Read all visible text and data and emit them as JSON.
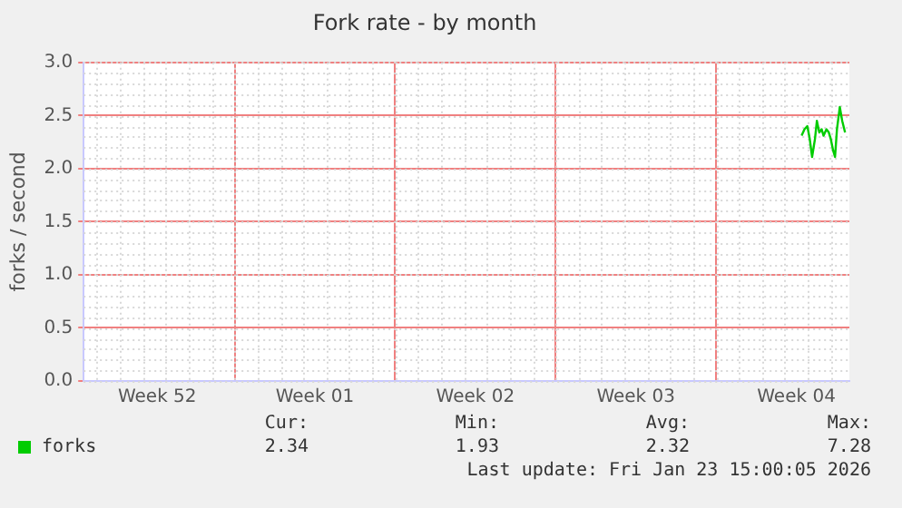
{
  "chart_data": {
    "type": "line",
    "title": "Fork rate - by month",
    "ylabel": "forks / second",
    "xlim": [
      "2025-12-21T10:00",
      "2026-01-23T19:30"
    ],
    "xticks": [
      {
        "value": "2025-12-24T15:00",
        "label": "Week 52"
      },
      {
        "value": "2025-12-28",
        "label": null
      },
      {
        "value": "2025-12-31T12:00",
        "label": "Week 01"
      },
      {
        "value": "2026-01-04",
        "label": null
      },
      {
        "value": "2026-01-07T12:00",
        "label": "Week 02"
      },
      {
        "value": "2026-01-11",
        "label": null
      },
      {
        "value": "2026-01-14T12:00",
        "label": "Week 03"
      },
      {
        "value": "2026-01-18",
        "label": null
      },
      {
        "value": "2026-01-21T12:00",
        "label": "Week 04"
      }
    ],
    "ylim": [
      0,
      3
    ],
    "yticks": [
      {
        "value": 0,
        "label": "0.0"
      },
      {
        "value": 0.5,
        "label": "0.5"
      },
      {
        "value": 1,
        "label": "1.0"
      },
      {
        "value": 1.5,
        "label": "1.5"
      },
      {
        "value": 2,
        "label": "2.0"
      },
      {
        "value": 2.5,
        "label": "2.5"
      },
      {
        "value": 3,
        "label": "3.0"
      }
    ],
    "grid": true,
    "legend": "bottom left",
    "marker": "none",
    "line_style": "solid",
    "series": [
      {
        "name": "forks",
        "color": "#00cc00",
        "x": [
          "2026-01-21T17:30",
          "2026-01-21T20:30",
          "2026-01-21T23:30",
          "2026-01-22T02:00",
          "2026-01-22T04:30",
          "2026-01-22T07:30",
          "2026-01-22T09:30",
          "2026-01-22T12:00",
          "2026-01-22T14:30",
          "2026-01-22T16:30",
          "2026-01-22T19:30",
          "2026-01-22T22:00",
          "2026-01-23T00:00",
          "2026-01-23T02:30",
          "2026-01-23T04:30",
          "2026-01-23T06:30",
          "2026-01-23T09:30",
          "2026-01-23T12:00",
          "2026-01-23T15:00"
        ],
        "values": [
          2.31,
          2.37,
          2.4,
          2.28,
          2.11,
          2.28,
          2.45,
          2.34,
          2.37,
          2.31,
          2.37,
          2.34,
          2.28,
          2.17,
          2.11,
          2.37,
          2.58,
          2.45,
          2.34
        ]
      }
    ],
    "annotations": [
      "Cur:",
      "Min:",
      "Avg:",
      "Max:",
      "2.34",
      "1.93",
      "2.32",
      "7.28",
      "Last update: Fri Jan 23 15:00:05 2026"
    ]
  }
}
